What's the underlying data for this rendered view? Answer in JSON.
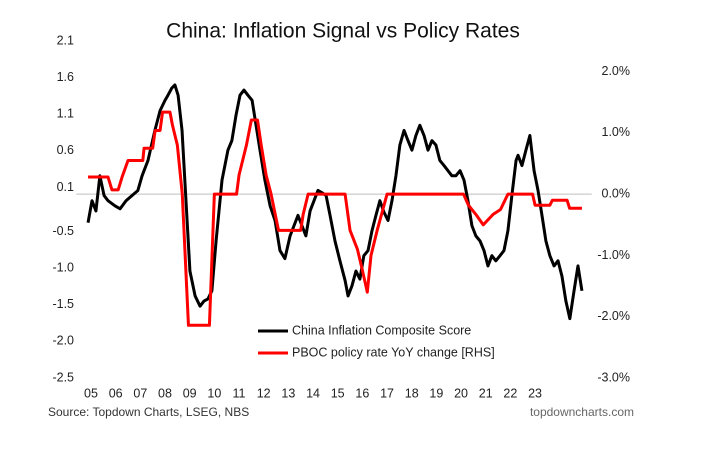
{
  "chart_data": {
    "type": "line",
    "title": "China: Inflation Signal vs Policy Rates",
    "source": "Source: Topdown Charts, LSEG, NBS",
    "credit": "topdowncharts.com",
    "legend_loc": "lower center",
    "xlim": [
      4.4,
      25.3
    ],
    "xticks": [
      {
        "value": 5,
        "label": "05"
      },
      {
        "value": 6,
        "label": "06"
      },
      {
        "value": 7,
        "label": "07"
      },
      {
        "value": 8,
        "label": "08"
      },
      {
        "value": 9,
        "label": "09"
      },
      {
        "value": 10,
        "label": "10"
      },
      {
        "value": 11,
        "label": "11"
      },
      {
        "value": 12,
        "label": "12"
      },
      {
        "value": 13,
        "label": "13"
      },
      {
        "value": 14,
        "label": "14"
      },
      {
        "value": 15,
        "label": "15"
      },
      {
        "value": 16,
        "label": "16"
      },
      {
        "value": 17,
        "label": "17"
      },
      {
        "value": 18,
        "label": "18"
      },
      {
        "value": 19,
        "label": "19"
      },
      {
        "value": 20,
        "label": "20"
      },
      {
        "value": 21,
        "label": "21"
      },
      {
        "value": 22,
        "label": "22"
      },
      {
        "value": 23,
        "label": "23"
      }
    ],
    "ylim": [
      -2.5,
      2.1
    ],
    "yticks": [
      2.1,
      1.6,
      1.1,
      0.6,
      0.1,
      -0.5,
      {
        "value": -1,
        "label": "-1.0"
      },
      -1.5,
      {
        "value": -2,
        "label": "-2.0"
      },
      -2.5
    ],
    "y2lim": [
      -3,
      2.5
    ],
    "y2ticks": [
      {
        "value": 2,
        "label": "2.0%"
      },
      {
        "value": 1,
        "label": "1.0%"
      },
      {
        "value": 0,
        "label": "0.0%"
      },
      {
        "value": -1,
        "label": "-1.0%"
      },
      {
        "value": -2,
        "label": "-2.0%"
      },
      {
        "value": -3,
        "label": "-3.0%"
      }
    ],
    "series": [
      {
        "name": "China Inflation Composite Score",
        "color": "#000000",
        "x": [
          4.88,
          5.04,
          5.2,
          5.36,
          5.53,
          5.69,
          5.97,
          6.18,
          6.42,
          6.66,
          6.9,
          7.07,
          7.31,
          7.59,
          7.8,
          8.0,
          8.12,
          8.28,
          8.4,
          8.53,
          8.69,
          8.85,
          9.01,
          9.22,
          9.42,
          9.58,
          9.74,
          9.9,
          10.07,
          10.31,
          10.55,
          10.71,
          10.88,
          11.04,
          11.2,
          11.36,
          11.53,
          11.69,
          11.85,
          12.05,
          12.26,
          12.46,
          12.66,
          12.86,
          13.07,
          13.23,
          13.39,
          13.55,
          13.71,
          13.88,
          14.04,
          14.2,
          14.36,
          14.53,
          14.69,
          14.89,
          15.09,
          15.3,
          15.42,
          15.58,
          15.74,
          15.9,
          16.06,
          16.23,
          16.39,
          16.55,
          16.71,
          16.88,
          17.04,
          17.2,
          17.36,
          17.52,
          17.69,
          17.85,
          18.01,
          18.17,
          18.33,
          18.5,
          18.66,
          18.82,
          18.98,
          19.14,
          19.31,
          19.47,
          19.63,
          19.79,
          19.96,
          20.12,
          20.28,
          20.44,
          20.6,
          20.77,
          20.93,
          21.09,
          21.25,
          21.41,
          21.58,
          21.74,
          21.9,
          22.06,
          22.23,
          22.31,
          22.47,
          22.63,
          22.79,
          22.96,
          23.12,
          23.28,
          23.44,
          23.6,
          23.77,
          23.93,
          24.09,
          24.25,
          24.41,
          24.58,
          24.74,
          24.9
        ],
        "values": [
          -0.38,
          -0.08,
          -0.22,
          0.26,
          -0.01,
          -0.08,
          -0.15,
          -0.19,
          -0.08,
          -0.01,
          0.06,
          0.26,
          0.47,
          0.88,
          1.15,
          1.29,
          1.36,
          1.46,
          1.5,
          1.36,
          0.88,
          -0.08,
          -1.04,
          -1.38,
          -1.52,
          -1.45,
          -1.42,
          -1.31,
          -0.63,
          0.2,
          0.61,
          0.74,
          1.09,
          1.36,
          1.43,
          1.36,
          1.29,
          0.95,
          0.61,
          0.2,
          -0.15,
          -0.35,
          -0.76,
          -0.87,
          -0.56,
          -0.42,
          -0.28,
          -0.42,
          -0.56,
          -0.22,
          -0.08,
          0.06,
          0.03,
          -0.01,
          -0.28,
          -0.63,
          -0.9,
          -1.17,
          -1.38,
          -1.24,
          -1.04,
          -1.15,
          -0.83,
          -0.76,
          -0.49,
          -0.28,
          -0.08,
          -0.24,
          -0.35,
          -0.08,
          0.26,
          0.68,
          0.88,
          0.74,
          0.61,
          0.81,
          0.95,
          0.81,
          0.61,
          0.74,
          0.68,
          0.47,
          0.4,
          0.33,
          0.26,
          0.26,
          0.33,
          0.2,
          -0.08,
          -0.42,
          -0.56,
          -0.63,
          -0.76,
          -0.97,
          -0.83,
          -0.9,
          -0.83,
          -0.76,
          -0.49,
          -0.01,
          0.47,
          0.54,
          0.4,
          0.61,
          0.81,
          0.33,
          0.06,
          -0.28,
          -0.63,
          -0.83,
          -0.97,
          -0.9,
          -1.11,
          -1.45,
          -1.69,
          -1.31,
          -0.97,
          -1.31
        ]
      },
      {
        "name": "PBOC policy rate YoY change [RHS]",
        "color": "#ff0000",
        "axis": "y2",
        "x": [
          4.88,
          5.69,
          5.85,
          6.1,
          6.26,
          6.5,
          7.1,
          7.15,
          7.5,
          7.6,
          7.8,
          7.9,
          8.2,
          8.3,
          8.5,
          8.7,
          8.95,
          9.8,
          10.0,
          10.9,
          11.0,
          11.3,
          11.5,
          11.75,
          11.9,
          12.1,
          12.3,
          12.6,
          13.5,
          13.6,
          13.8,
          15.3,
          15.5,
          15.8,
          16.0,
          16.2,
          16.35,
          16.6,
          17.0,
          20.1,
          20.3,
          20.6,
          20.9,
          21.3,
          21.6,
          21.9,
          22.9,
          23.0,
          23.6,
          23.7,
          24.3,
          24.4,
          24.9
        ],
        "values": [
          0.28,
          0.28,
          0.07,
          0.07,
          0.28,
          0.55,
          0.55,
          0.75,
          0.75,
          1.04,
          1.04,
          1.34,
          1.34,
          1.13,
          0.8,
          0,
          -2.14,
          -2.14,
          0,
          0,
          0.31,
          0.8,
          1.21,
          1.21,
          0.8,
          0.31,
          0,
          -0.59,
          -0.59,
          -0.33,
          0,
          0,
          -0.59,
          -0.9,
          -1.24,
          -1.6,
          -1,
          -0.59,
          0,
          0,
          -0.18,
          -0.33,
          -0.5,
          -0.33,
          -0.25,
          0,
          0,
          -0.18,
          -0.18,
          -0.1,
          -0.1,
          -0.23,
          -0.23
        ]
      }
    ]
  }
}
